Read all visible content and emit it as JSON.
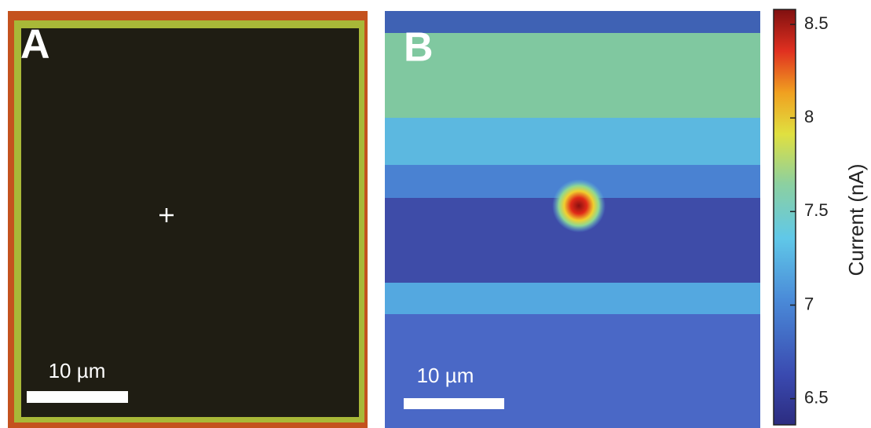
{
  "panels": [
    {
      "label": "A",
      "scale_bar": "10 µm"
    },
    {
      "label": "B",
      "scale_bar": "10 µm"
    }
  ],
  "colorbar": {
    "label": "Current (nA)",
    "lim": [
      6.36,
      8.58
    ],
    "ticks": [
      6.5,
      7,
      7.5,
      8,
      8.5
    ]
  }
}
